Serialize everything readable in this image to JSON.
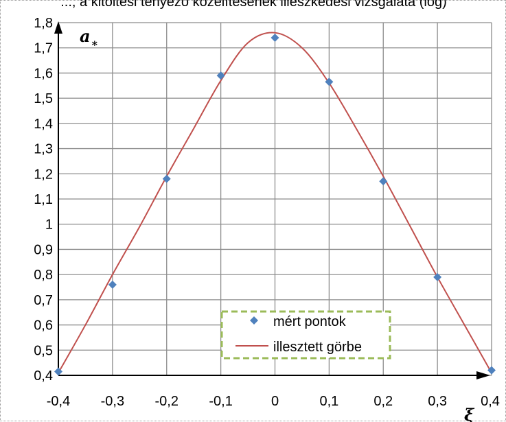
{
  "caption": "..., a kitöltési tényező közelítésének illeszkedési vizsgálata (log)",
  "chart_data": {
    "type": "scatter",
    "xlabel": "ξ",
    "ylabel": "a",
    "ylabel_subscript": "*",
    "xlim": [
      -0.4,
      0.4
    ],
    "ylim": [
      0.4,
      1.8
    ],
    "x_ticks": [
      -0.4,
      -0.3,
      -0.2,
      -0.1,
      0,
      0.1,
      0.2,
      0.3,
      0.4
    ],
    "x_tick_labels": [
      "-0,4",
      "-0,3",
      "-0,2",
      "-0,1",
      "0",
      "0,1",
      "0,2",
      "0,3",
      "0,4"
    ],
    "y_ticks": [
      0.4,
      0.5,
      0.6,
      0.7,
      0.8,
      0.9,
      1.0,
      1.1,
      1.2,
      1.3,
      1.4,
      1.5,
      1.6,
      1.7,
      1.8
    ],
    "y_tick_labels": [
      "0,4",
      "0,5",
      "0,6",
      "0,7",
      "0,8",
      "0,9",
      "1",
      "1,1",
      "1,2",
      "1,3",
      "1,4",
      "1,5",
      "1,6",
      "1,7",
      "1,8"
    ],
    "grid": true,
    "legend_position": "bottom-center",
    "series": [
      {
        "name": "mért pontok",
        "kind": "scatter",
        "marker": "diamond",
        "color": "#4f81bd",
        "x": [
          -0.4,
          -0.3,
          -0.2,
          -0.1,
          0,
          0.1,
          0.2,
          0.3,
          0.4
        ],
        "y": [
          0.415,
          0.76,
          1.18,
          1.59,
          1.74,
          1.565,
          1.17,
          0.79,
          0.42
        ]
      },
      {
        "name": "illesztett görbe",
        "kind": "line",
        "color": "#c0504d",
        "x": [
          -0.4,
          -0.35,
          -0.3,
          -0.25,
          -0.2,
          -0.15,
          -0.1,
          -0.05,
          0,
          0.05,
          0.1,
          0.15,
          0.2,
          0.25,
          0.3,
          0.35,
          0.4
        ],
        "y": [
          0.41,
          0.6,
          0.8,
          0.99,
          1.19,
          1.38,
          1.57,
          1.72,
          1.76,
          1.7,
          1.56,
          1.38,
          1.19,
          0.99,
          0.79,
          0.6,
          0.41
        ]
      }
    ]
  },
  "colors": {
    "grid": "#8c8c8c",
    "axis": "#000000",
    "legend_border": "#9bbb59",
    "frame_border": "#9a9a9a"
  }
}
